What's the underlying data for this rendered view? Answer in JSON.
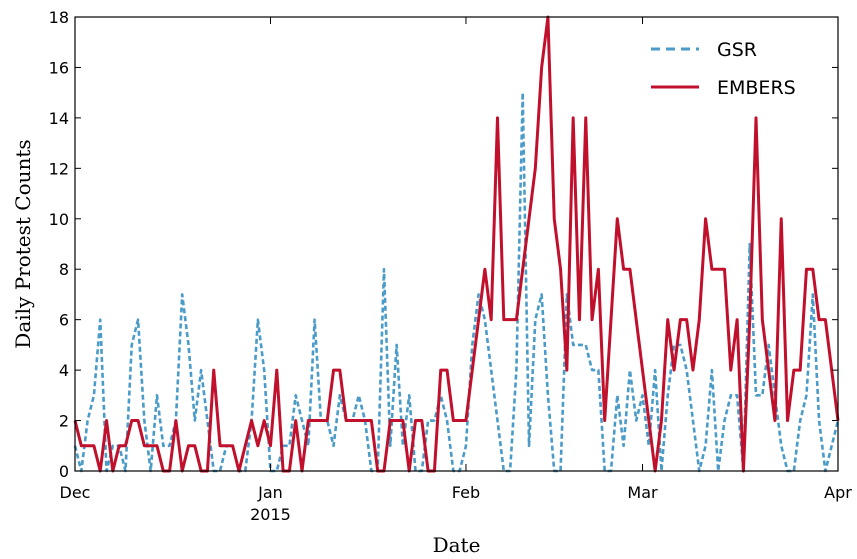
{
  "chart_data": {
    "type": "line",
    "xlabel": "Date",
    "ylabel": "Daily Protest Counts",
    "ylim": [
      0,
      18
    ],
    "xlim": [
      "2014-12-01",
      "2015-04-01"
    ],
    "grid": false,
    "legend_position": "top-right",
    "x_ticks": [
      {
        "date": "2014-12-01",
        "label": "Dec",
        "sublabel": ""
      },
      {
        "date": "2015-01-01",
        "label": "Jan",
        "sublabel": "2015"
      },
      {
        "date": "2015-02-01",
        "label": "Feb",
        "sublabel": ""
      },
      {
        "date": "2015-03-01",
        "label": "Mar",
        "sublabel": ""
      },
      {
        "date": "2015-04-01",
        "label": "Apr",
        "sublabel": ""
      }
    ],
    "y_ticks": [
      0,
      2,
      4,
      6,
      8,
      10,
      12,
      14,
      16,
      18
    ],
    "series": [
      {
        "name": "GSR",
        "style": "dashed",
        "color": "#4a9bc8",
        "points": [
          [
            "2014-12-01",
            1
          ],
          [
            "2014-12-02",
            0
          ],
          [
            "2014-12-03",
            2
          ],
          [
            "2014-12-04",
            3
          ],
          [
            "2014-12-05",
            6
          ],
          [
            "2014-12-06",
            0
          ],
          [
            "2014-12-07",
            1
          ],
          [
            "2014-12-08",
            1
          ],
          [
            "2014-12-09",
            0
          ],
          [
            "2014-12-10",
            5
          ],
          [
            "2014-12-11",
            6
          ],
          [
            "2014-12-12",
            2
          ],
          [
            "2014-12-13",
            0
          ],
          [
            "2014-12-14",
            3
          ],
          [
            "2014-12-15",
            1
          ],
          [
            "2014-12-16",
            1
          ],
          [
            "2014-12-17",
            2
          ],
          [
            "2014-12-18",
            7
          ],
          [
            "2014-12-19",
            5
          ],
          [
            "2014-12-20",
            2
          ],
          [
            "2014-12-21",
            4
          ],
          [
            "2014-12-22",
            2
          ],
          [
            "2014-12-23",
            0
          ],
          [
            "2014-12-24",
            0
          ],
          [
            "2014-12-25",
            1
          ],
          [
            "2014-12-26",
            1
          ],
          [
            "2014-12-27",
            0
          ],
          [
            "2014-12-28",
            0
          ],
          [
            "2014-12-29",
            2
          ],
          [
            "2014-12-30",
            6
          ],
          [
            "2014-12-31",
            4
          ],
          [
            "2015-01-01",
            0
          ],
          [
            "2015-01-02",
            0
          ],
          [
            "2015-01-03",
            1
          ],
          [
            "2015-01-04",
            1
          ],
          [
            "2015-01-05",
            3
          ],
          [
            "2015-01-06",
            2
          ],
          [
            "2015-01-07",
            1
          ],
          [
            "2015-01-08",
            6
          ],
          [
            "2015-01-09",
            2
          ],
          [
            "2015-01-10",
            2
          ],
          [
            "2015-01-11",
            1
          ],
          [
            "2015-01-12",
            3
          ],
          [
            "2015-01-13",
            2
          ],
          [
            "2015-01-14",
            2
          ],
          [
            "2015-01-15",
            3
          ],
          [
            "2015-01-16",
            2
          ],
          [
            "2015-01-17",
            0
          ],
          [
            "2015-01-18",
            0
          ],
          [
            "2015-01-19",
            8
          ],
          [
            "2015-01-20",
            1
          ],
          [
            "2015-01-21",
            5
          ],
          [
            "2015-01-22",
            1
          ],
          [
            "2015-01-23",
            3
          ],
          [
            "2015-01-24",
            0
          ],
          [
            "2015-01-25",
            0
          ],
          [
            "2015-01-26",
            2
          ],
          [
            "2015-01-27",
            2
          ],
          [
            "2015-01-28",
            3
          ],
          [
            "2015-01-29",
            2
          ],
          [
            "2015-01-30",
            0
          ],
          [
            "2015-01-31",
            0
          ],
          [
            "2015-02-01",
            1
          ],
          [
            "2015-02-02",
            5
          ],
          [
            "2015-02-03",
            7
          ],
          [
            "2015-02-04",
            6
          ],
          [
            "2015-02-05",
            4
          ],
          [
            "2015-02-06",
            2
          ],
          [
            "2015-02-07",
            0
          ],
          [
            "2015-02-08",
            0
          ],
          [
            "2015-02-09",
            4
          ],
          [
            "2015-02-10",
            15
          ],
          [
            "2015-02-11",
            1
          ],
          [
            "2015-02-12",
            6
          ],
          [
            "2015-02-13",
            7
          ],
          [
            "2015-02-14",
            3
          ],
          [
            "2015-02-15",
            0
          ],
          [
            "2015-02-16",
            0
          ],
          [
            "2015-02-17",
            7
          ],
          [
            "2015-02-18",
            5
          ],
          [
            "2015-02-19",
            5
          ],
          [
            "2015-02-20",
            5
          ],
          [
            "2015-02-21",
            4
          ],
          [
            "2015-02-22",
            4
          ],
          [
            "2015-02-23",
            0
          ],
          [
            "2015-02-24",
            0
          ],
          [
            "2015-02-25",
            3
          ],
          [
            "2015-02-26",
            1
          ],
          [
            "2015-02-27",
            4
          ],
          [
            "2015-02-28",
            2
          ],
          [
            "2015-03-01",
            3
          ],
          [
            "2015-03-02",
            1
          ],
          [
            "2015-03-03",
            4
          ],
          [
            "2015-03-04",
            0
          ],
          [
            "2015-03-05",
            3
          ],
          [
            "2015-03-06",
            5
          ],
          [
            "2015-03-07",
            5
          ],
          [
            "2015-03-08",
            4
          ],
          [
            "2015-03-09",
            2
          ],
          [
            "2015-03-10",
            0
          ],
          [
            "2015-03-11",
            1
          ],
          [
            "2015-03-12",
            4
          ],
          [
            "2015-03-13",
            0
          ],
          [
            "2015-03-14",
            2
          ],
          [
            "2015-03-15",
            3
          ],
          [
            "2015-03-16",
            3
          ],
          [
            "2015-03-17",
            0
          ],
          [
            "2015-03-18",
            9
          ],
          [
            "2015-03-19",
            3
          ],
          [
            "2015-03-20",
            3
          ],
          [
            "2015-03-21",
            5
          ],
          [
            "2015-03-22",
            3
          ],
          [
            "2015-03-23",
            1
          ],
          [
            "2015-03-24",
            0
          ],
          [
            "2015-03-25",
            0
          ],
          [
            "2015-03-26",
            2
          ],
          [
            "2015-03-27",
            3
          ],
          [
            "2015-03-28",
            7
          ],
          [
            "2015-03-29",
            2
          ],
          [
            "2015-03-30",
            0
          ],
          [
            "2015-03-31",
            1
          ],
          [
            "2015-04-01",
            2
          ]
        ]
      },
      {
        "name": "EMBERS",
        "style": "solid",
        "color": "#c0102c",
        "points": [
          [
            "2014-12-01",
            2
          ],
          [
            "2014-12-02",
            1
          ],
          [
            "2014-12-03",
            1
          ],
          [
            "2014-12-04",
            1
          ],
          [
            "2014-12-05",
            0
          ],
          [
            "2014-12-06",
            2
          ],
          [
            "2014-12-07",
            0
          ],
          [
            "2014-12-08",
            1
          ],
          [
            "2014-12-09",
            1
          ],
          [
            "2014-12-10",
            2
          ],
          [
            "2014-12-11",
            2
          ],
          [
            "2014-12-12",
            1
          ],
          [
            "2014-12-13",
            1
          ],
          [
            "2014-12-14",
            1
          ],
          [
            "2014-12-15",
            0
          ],
          [
            "2014-12-16",
            0
          ],
          [
            "2014-12-17",
            2
          ],
          [
            "2014-12-18",
            0
          ],
          [
            "2014-12-19",
            1
          ],
          [
            "2014-12-20",
            1
          ],
          [
            "2014-12-21",
            0
          ],
          [
            "2014-12-22",
            0
          ],
          [
            "2014-12-23",
            4
          ],
          [
            "2014-12-24",
            1
          ],
          [
            "2014-12-25",
            1
          ],
          [
            "2014-12-26",
            1
          ],
          [
            "2014-12-27",
            0
          ],
          [
            "2014-12-28",
            1
          ],
          [
            "2014-12-29",
            2
          ],
          [
            "2014-12-30",
            1
          ],
          [
            "2014-12-31",
            2
          ],
          [
            "2015-01-01",
            1
          ],
          [
            "2015-01-02",
            4
          ],
          [
            "2015-01-03",
            0
          ],
          [
            "2015-01-04",
            0
          ],
          [
            "2015-01-05",
            2
          ],
          [
            "2015-01-06",
            0
          ],
          [
            "2015-01-07",
            2
          ],
          [
            "2015-01-08",
            2
          ],
          [
            "2015-01-09",
            2
          ],
          [
            "2015-01-10",
            2
          ],
          [
            "2015-01-11",
            4
          ],
          [
            "2015-01-12",
            4
          ],
          [
            "2015-01-13",
            2
          ],
          [
            "2015-01-14",
            2
          ],
          [
            "2015-01-15",
            2
          ],
          [
            "2015-01-16",
            2
          ],
          [
            "2015-01-17",
            2
          ],
          [
            "2015-01-18",
            0
          ],
          [
            "2015-01-19",
            0
          ],
          [
            "2015-01-20",
            2
          ],
          [
            "2015-01-21",
            2
          ],
          [
            "2015-01-22",
            2
          ],
          [
            "2015-01-23",
            0
          ],
          [
            "2015-01-24",
            2
          ],
          [
            "2015-01-25",
            2
          ],
          [
            "2015-01-26",
            0
          ],
          [
            "2015-01-27",
            0
          ],
          [
            "2015-01-28",
            4
          ],
          [
            "2015-01-29",
            4
          ],
          [
            "2015-01-30",
            2
          ],
          [
            "2015-01-31",
            2
          ],
          [
            "2015-02-01",
            2
          ],
          [
            "2015-02-02",
            4
          ],
          [
            "2015-02-03",
            6
          ],
          [
            "2015-02-04",
            8
          ],
          [
            "2015-02-05",
            6
          ],
          [
            "2015-02-06",
            14
          ],
          [
            "2015-02-07",
            6
          ],
          [
            "2015-02-08",
            6
          ],
          [
            "2015-02-09",
            6
          ],
          [
            "2015-02-10",
            8
          ],
          [
            "2015-02-11",
            10
          ],
          [
            "2015-02-12",
            12
          ],
          [
            "2015-02-13",
            16
          ],
          [
            "2015-02-14",
            18
          ],
          [
            "2015-02-15",
            10
          ],
          [
            "2015-02-16",
            8
          ],
          [
            "2015-02-17",
            4
          ],
          [
            "2015-02-18",
            14
          ],
          [
            "2015-02-19",
            6
          ],
          [
            "2015-02-20",
            14
          ],
          [
            "2015-02-21",
            6
          ],
          [
            "2015-02-22",
            8
          ],
          [
            "2015-02-23",
            2
          ],
          [
            "2015-02-24",
            6
          ],
          [
            "2015-02-25",
            10
          ],
          [
            "2015-02-26",
            8
          ],
          [
            "2015-02-27",
            8
          ],
          [
            "2015-02-28",
            6
          ],
          [
            "2015-03-01",
            4
          ],
          [
            "2015-03-02",
            2
          ],
          [
            "2015-03-03",
            0
          ],
          [
            "2015-03-04",
            2
          ],
          [
            "2015-03-05",
            6
          ],
          [
            "2015-03-06",
            4
          ],
          [
            "2015-03-07",
            6
          ],
          [
            "2015-03-08",
            6
          ],
          [
            "2015-03-09",
            4
          ],
          [
            "2015-03-10",
            6
          ],
          [
            "2015-03-11",
            10
          ],
          [
            "2015-03-12",
            8
          ],
          [
            "2015-03-13",
            8
          ],
          [
            "2015-03-14",
            8
          ],
          [
            "2015-03-15",
            4
          ],
          [
            "2015-03-16",
            6
          ],
          [
            "2015-03-17",
            0
          ],
          [
            "2015-03-18",
            6
          ],
          [
            "2015-03-19",
            14
          ],
          [
            "2015-03-20",
            6
          ],
          [
            "2015-03-21",
            4
          ],
          [
            "2015-03-22",
            2
          ],
          [
            "2015-03-23",
            10
          ],
          [
            "2015-03-24",
            2
          ],
          [
            "2015-03-25",
            4
          ],
          [
            "2015-03-26",
            4
          ],
          [
            "2015-03-27",
            8
          ],
          [
            "2015-03-28",
            8
          ],
          [
            "2015-03-29",
            6
          ],
          [
            "2015-03-30",
            6
          ],
          [
            "2015-03-31",
            4
          ],
          [
            "2015-04-01",
            2
          ]
        ]
      }
    ]
  }
}
